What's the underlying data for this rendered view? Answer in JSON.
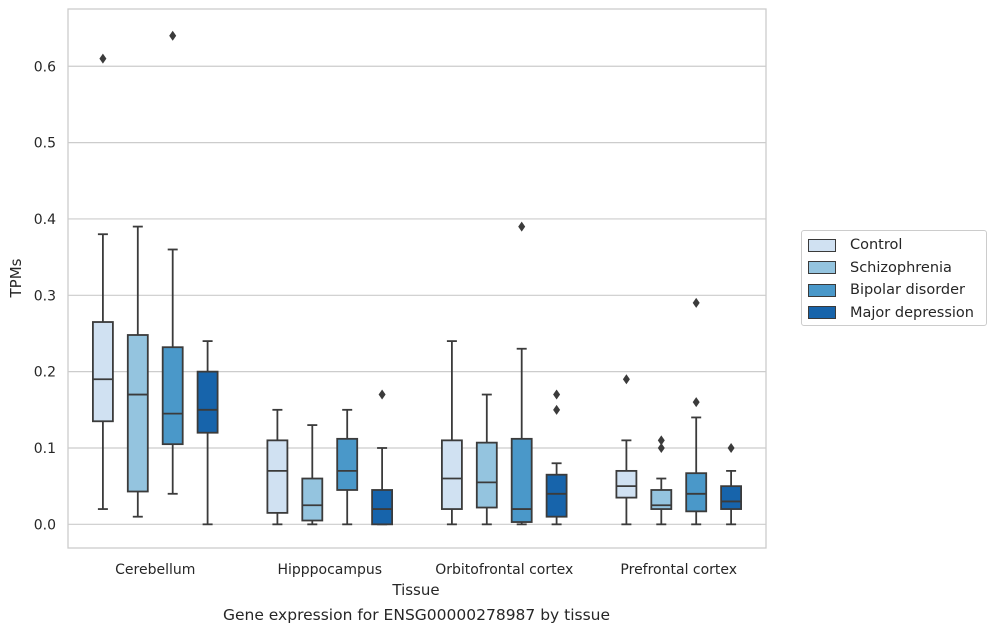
{
  "chart_data": {
    "type": "box",
    "caption": "Gene expression for ENSG00000278987 by tissue",
    "xlabel": "Tissue",
    "ylabel": "TPMs",
    "ylim": [
      -0.031,
      0.675
    ],
    "yticks": [
      "0.0",
      "0.1",
      "0.2",
      "0.3",
      "0.4",
      "0.5",
      "0.6"
    ],
    "grid": "horizontal",
    "legend_position": "right",
    "categories": [
      "Cerebellum",
      "Hipppocampus",
      "Orbitofrontal cortex",
      "Prefrontal cortex"
    ],
    "series": [
      {
        "name": "Control",
        "color": "#d0e1f2",
        "boxes": [
          {
            "whislo": 0.02,
            "q1": 0.135,
            "med": 0.19,
            "q3": 0.265,
            "whishi": 0.38,
            "fliers": [
              0.61
            ]
          },
          {
            "whislo": 0.0,
            "q1": 0.015,
            "med": 0.07,
            "q3": 0.11,
            "whishi": 0.15,
            "fliers": []
          },
          {
            "whislo": 0.0,
            "q1": 0.02,
            "med": 0.06,
            "q3": 0.11,
            "whishi": 0.24,
            "fliers": []
          },
          {
            "whislo": 0.0,
            "q1": 0.035,
            "med": 0.05,
            "q3": 0.07,
            "whishi": 0.11,
            "fliers": [
              0.19
            ]
          }
        ]
      },
      {
        "name": "Schizophrenia",
        "color": "#94c4df",
        "boxes": [
          {
            "whislo": 0.01,
            "q1": 0.043,
            "med": 0.17,
            "q3": 0.248,
            "whishi": 0.39,
            "fliers": []
          },
          {
            "whislo": 0.0,
            "q1": 0.005,
            "med": 0.025,
            "q3": 0.06,
            "whishi": 0.13,
            "fliers": []
          },
          {
            "whislo": 0.0,
            "q1": 0.022,
            "med": 0.055,
            "q3": 0.107,
            "whishi": 0.17,
            "fliers": []
          },
          {
            "whislo": 0.0,
            "q1": 0.02,
            "med": 0.025,
            "q3": 0.045,
            "whishi": 0.06,
            "fliers": [
              0.1,
              0.11
            ]
          }
        ]
      },
      {
        "name": "Bipolar disorder",
        "color": "#4a98c9",
        "boxes": [
          {
            "whislo": 0.04,
            "q1": 0.105,
            "med": 0.145,
            "q3": 0.232,
            "whishi": 0.36,
            "fliers": [
              0.64
            ]
          },
          {
            "whislo": 0.0,
            "q1": 0.045,
            "med": 0.07,
            "q3": 0.112,
            "whishi": 0.15,
            "fliers": []
          },
          {
            "whislo": 0.0,
            "q1": 0.003,
            "med": 0.02,
            "q3": 0.112,
            "whishi": 0.23,
            "fliers": [
              0.39
            ]
          },
          {
            "whislo": 0.0,
            "q1": 0.017,
            "med": 0.04,
            "q3": 0.067,
            "whishi": 0.14,
            "fliers": [
              0.16,
              0.29
            ]
          }
        ]
      },
      {
        "name": "Major depression",
        "color": "#1764ab",
        "boxes": [
          {
            "whislo": 0.0,
            "q1": 0.12,
            "med": 0.15,
            "q3": 0.2,
            "whishi": 0.24,
            "fliers": []
          },
          {
            "whislo": 0.0,
            "q1": 0.0,
            "med": 0.02,
            "q3": 0.045,
            "whishi": 0.1,
            "fliers": [
              0.17
            ]
          },
          {
            "whislo": 0.0,
            "q1": 0.01,
            "med": 0.04,
            "q3": 0.065,
            "whishi": 0.08,
            "fliers": [
              0.15,
              0.17
            ]
          },
          {
            "whislo": 0.0,
            "q1": 0.02,
            "med": 0.03,
            "q3": 0.05,
            "whishi": 0.07,
            "fliers": [
              0.1
            ]
          }
        ]
      }
    ]
  }
}
